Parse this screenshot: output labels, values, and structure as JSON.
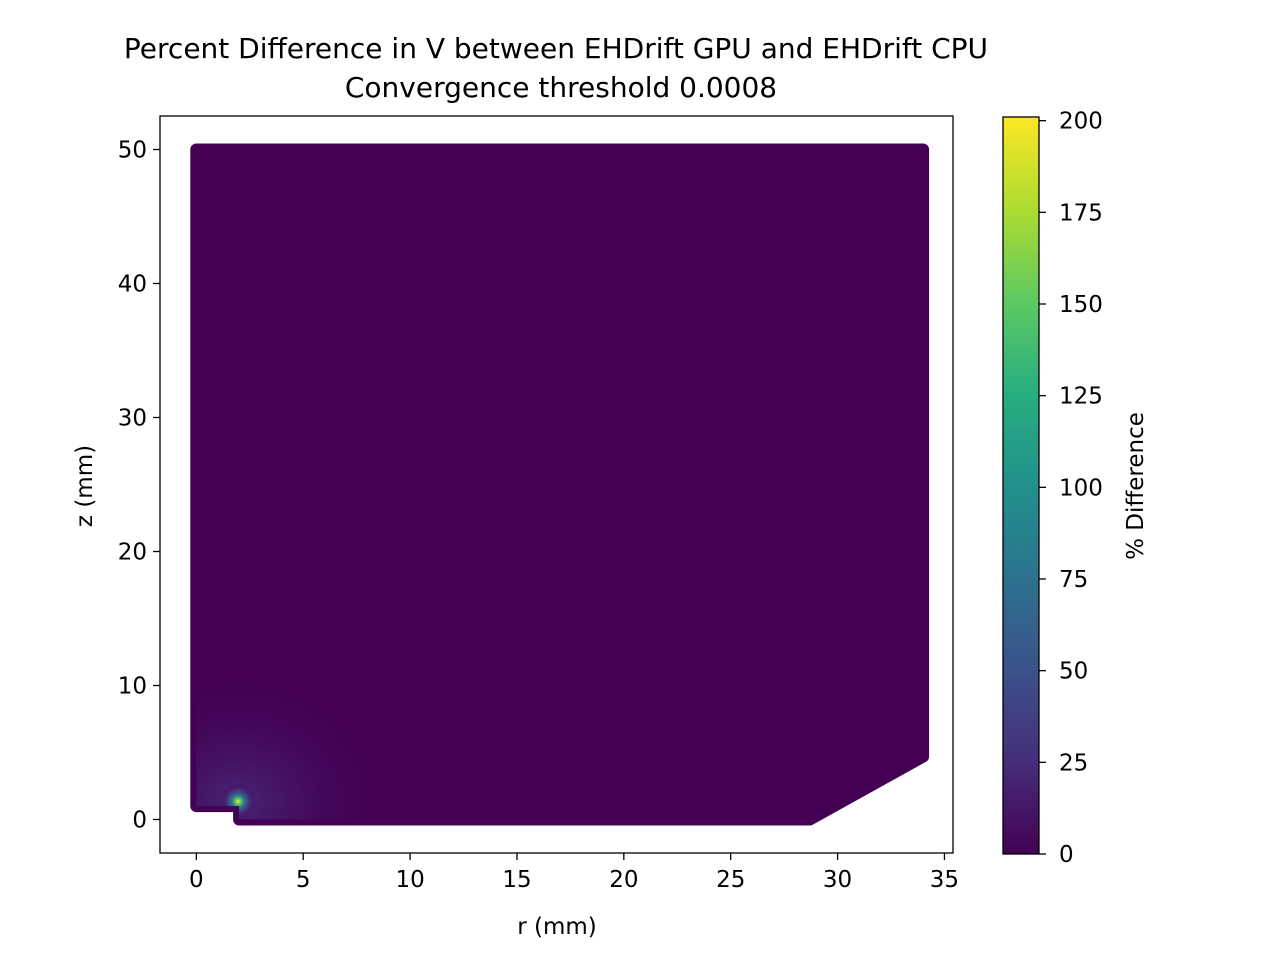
{
  "chart_data": {
    "type": "heatmap",
    "title": "Percent Difference in V between EHDrift GPU and EHDrift CPU",
    "subtitle": "Convergence threshold 0.0008",
    "xlabel": "r (mm)",
    "ylabel": "z (mm)",
    "xlim": [
      -1.7,
      35.4
    ],
    "ylim": [
      -2.5,
      52.5
    ],
    "x_ticks": [
      0,
      5,
      10,
      15,
      20,
      25,
      30,
      35
    ],
    "y_ticks": [
      0,
      10,
      20,
      30,
      40,
      50
    ],
    "colorbar": {
      "label": "% Difference",
      "colormap": "viridis",
      "range": [
        0,
        201
      ],
      "ticks": [
        0,
        25,
        50,
        75,
        100,
        125,
        150,
        175,
        200
      ]
    },
    "region_outline": [
      [
        0,
        1
      ],
      [
        2,
        1
      ],
      [
        2,
        0
      ],
      [
        28.7,
        0
      ],
      [
        34,
        4.7
      ],
      [
        34,
        50
      ],
      [
        0,
        50
      ]
    ],
    "background_value": 1,
    "hotspot": {
      "r": 1.95,
      "z": 1.35,
      "peak_value": 201
    },
    "grid": false
  }
}
